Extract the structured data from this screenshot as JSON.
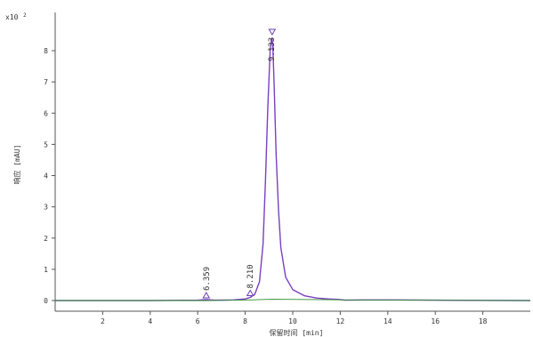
{
  "chart_data": {
    "type": "line",
    "title": "",
    "xlabel": "保留时间 [min]",
    "ylabel": "响应 [mAU]",
    "y_multiplier": "x10",
    "y_multiplier_exp": "2",
    "xlim": [
      0,
      20
    ],
    "ylim": [
      -0.3,
      9.3
    ],
    "x_ticks": [
      2,
      4,
      6,
      8,
      10,
      12,
      14,
      16,
      18
    ],
    "y_ticks": [
      0,
      1,
      2,
      3,
      4,
      5,
      6,
      7,
      8
    ],
    "grid": false,
    "colors": {
      "main": "#7b3fc0",
      "baseline": "#2e8b2e",
      "marker": "#6a3fb0"
    },
    "series": [
      {
        "role": "chromatogram",
        "x": [
          0,
          4,
          6.0,
          6.36,
          6.7,
          7.5,
          8.0,
          8.21,
          8.4,
          8.6,
          8.75,
          8.85,
          8.95,
          9.05,
          9.1,
          9.13,
          9.17,
          9.22,
          9.3,
          9.4,
          9.5,
          9.7,
          10.0,
          10.5,
          11.0,
          11.5,
          12.0,
          12.2,
          13.0,
          14.3,
          16.0,
          20.0
        ],
        "y": [
          0,
          0,
          0.01,
          0.03,
          0.01,
          0.02,
          0.05,
          0.1,
          0.2,
          0.6,
          1.8,
          3.8,
          6.2,
          8.0,
          8.35,
          8.4,
          8.0,
          6.8,
          4.7,
          2.9,
          1.7,
          0.75,
          0.35,
          0.15,
          0.08,
          0.05,
          0.03,
          0.01,
          0.02,
          0.02,
          0.01,
          0.0
        ]
      },
      {
        "role": "baseline",
        "x": [
          0,
          6.36,
          8.21,
          9.13,
          11.0,
          12.2,
          20.0
        ],
        "y": [
          0,
          0.0,
          0.02,
          0.04,
          0.03,
          0.02,
          0.0
        ]
      }
    ],
    "peaks": [
      {
        "label": "6.359",
        "x": 6.359,
        "y": 0.03
      },
      {
        "label": "8.210",
        "x": 8.21,
        "y": 0.1
      },
      {
        "label": "9.133",
        "x": 9.133,
        "y": 8.4
      }
    ]
  }
}
